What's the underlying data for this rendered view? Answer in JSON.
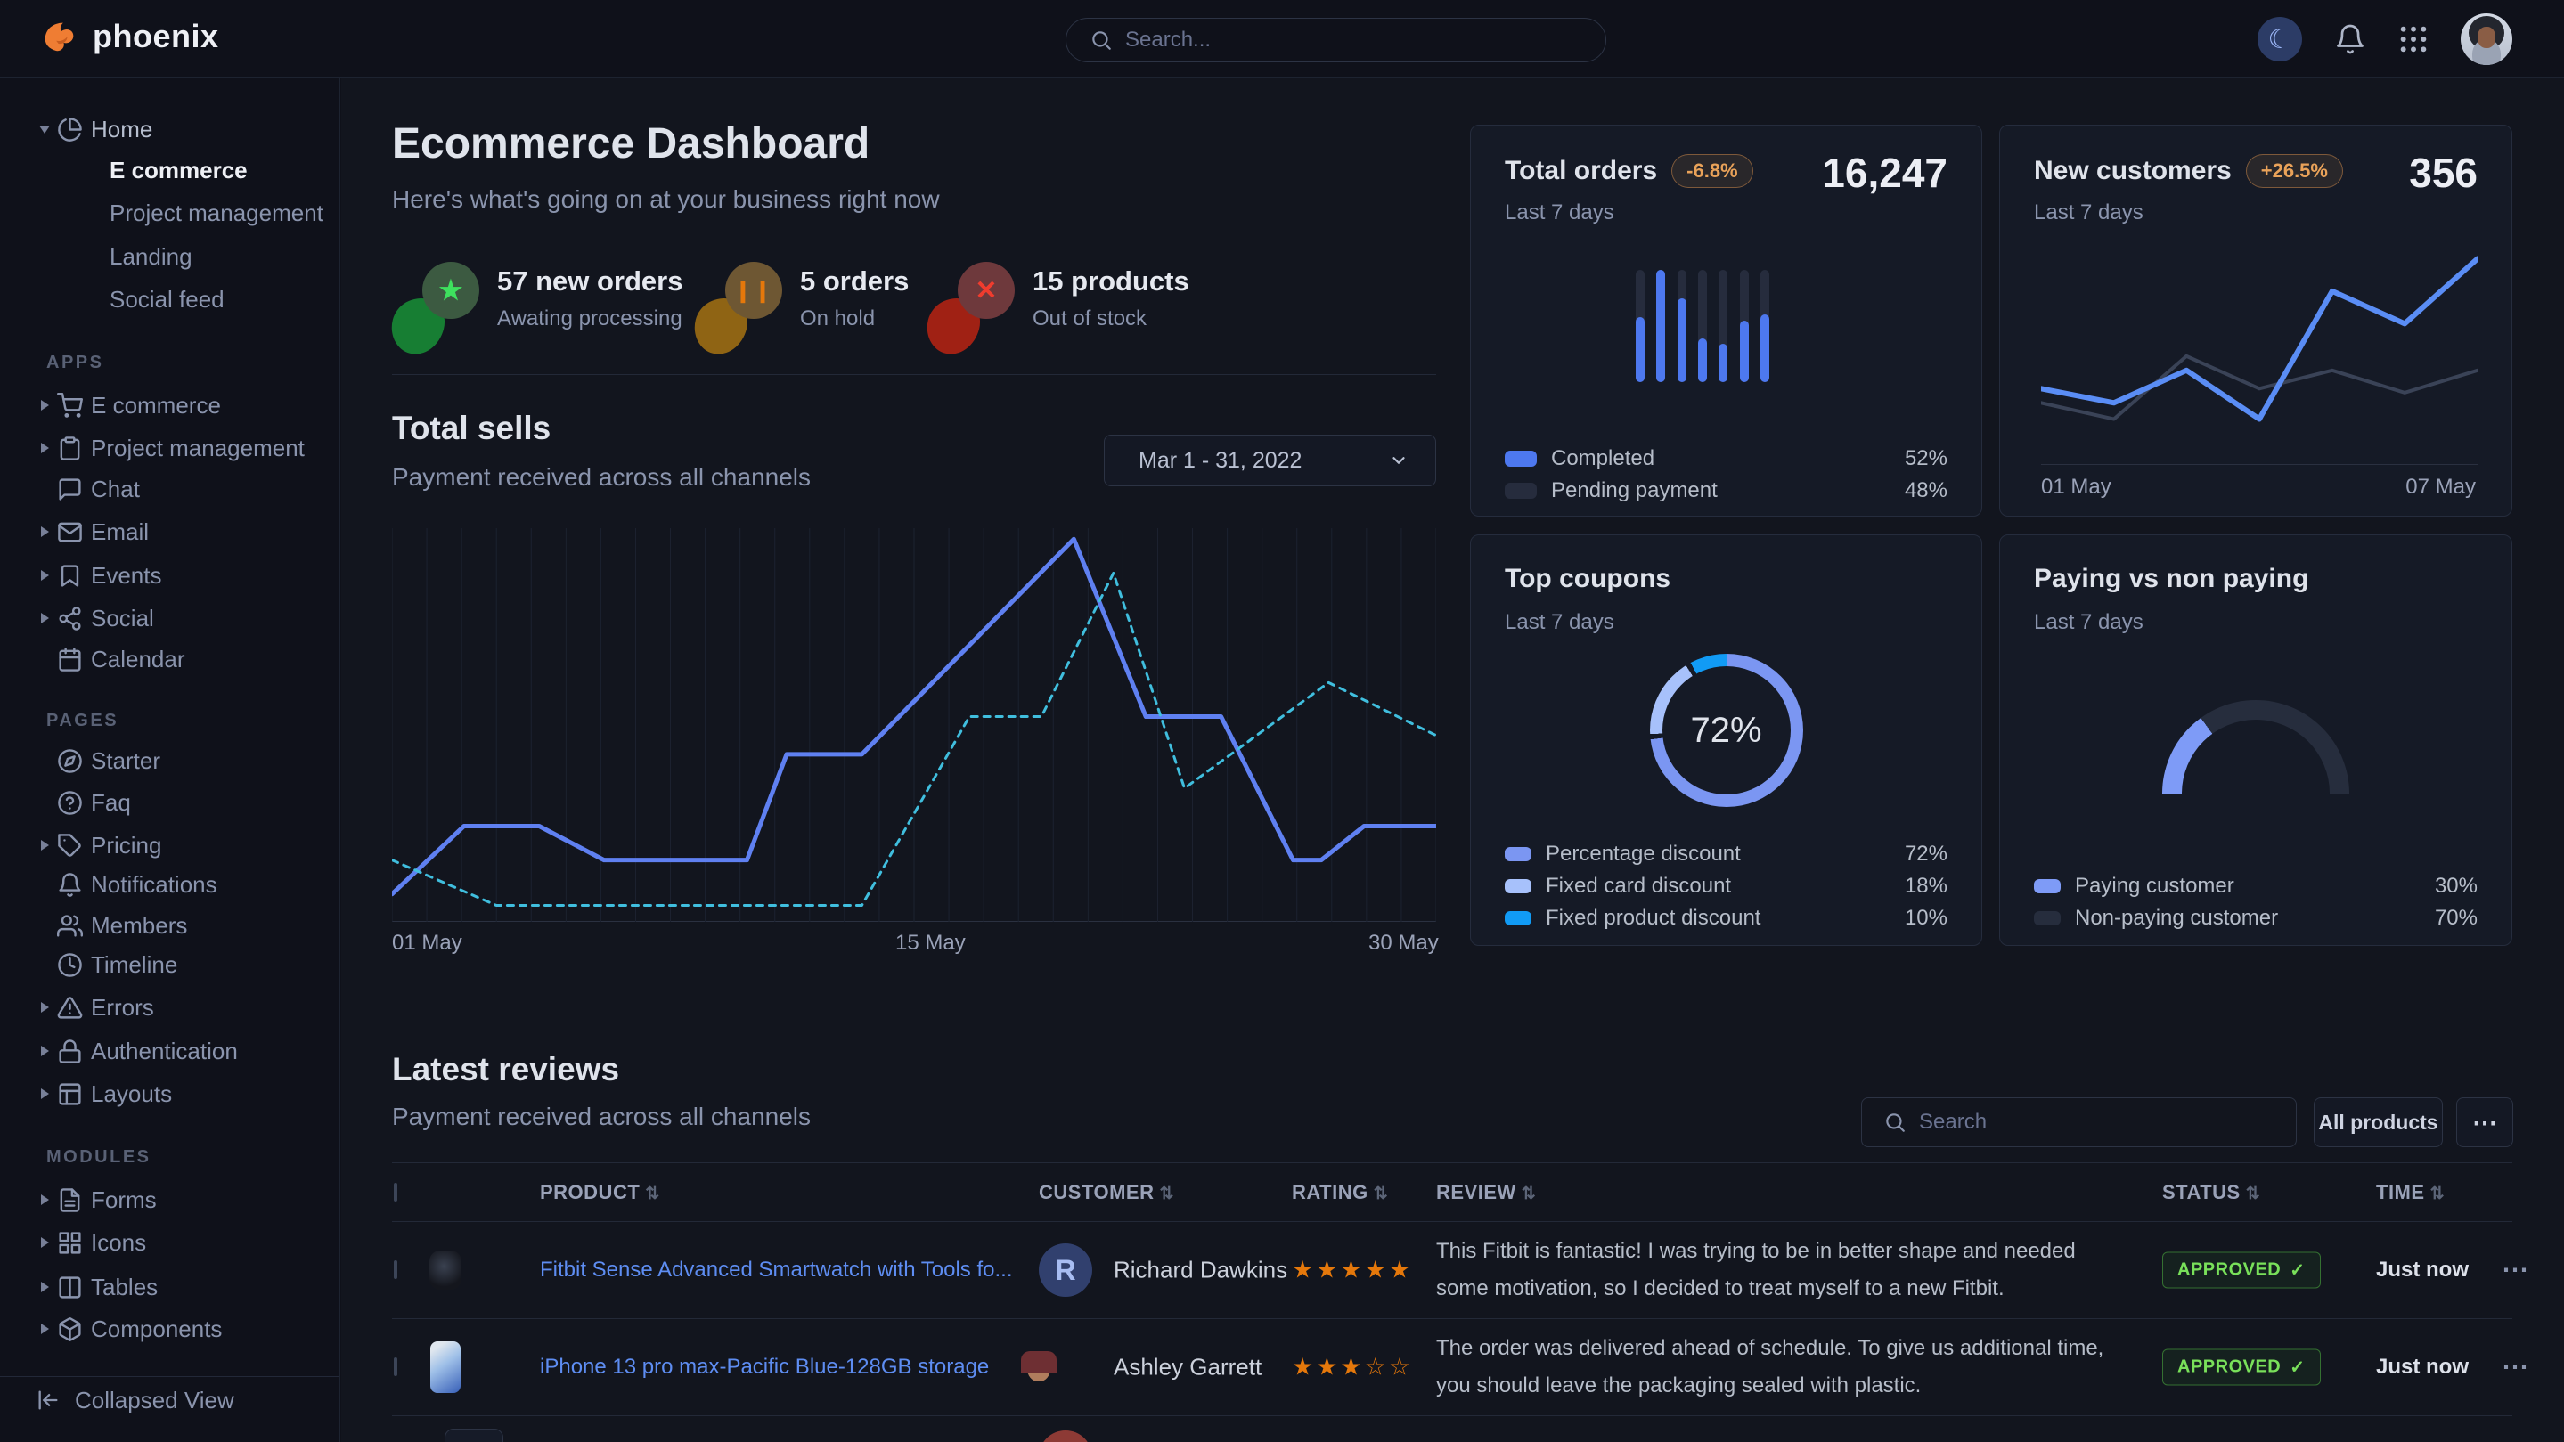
{
  "brand": {
    "name": "phoenix"
  },
  "navbar": {
    "search_placeholder": "Search..."
  },
  "sidebar": {
    "home": {
      "label": "Home",
      "children": [
        {
          "label": "E commerce",
          "active": true
        },
        {
          "label": "Project management",
          "active": false
        },
        {
          "label": "Landing",
          "active": false
        },
        {
          "label": "Social feed",
          "active": false
        }
      ]
    },
    "sections": [
      {
        "label": "APPS",
        "items": [
          {
            "label": "E commerce",
            "icon": "cart",
            "caret": true
          },
          {
            "label": "Project management",
            "icon": "clipboard",
            "caret": true
          },
          {
            "label": "Chat",
            "icon": "chat",
            "caret": false
          },
          {
            "label": "Email",
            "icon": "mail",
            "caret": true
          },
          {
            "label": "Events",
            "icon": "bookmark",
            "caret": true
          },
          {
            "label": "Social",
            "icon": "share",
            "caret": true
          },
          {
            "label": "Calendar",
            "icon": "calendar",
            "caret": false
          }
        ]
      },
      {
        "label": "PAGES",
        "items": [
          {
            "label": "Starter",
            "icon": "compass",
            "caret": false
          },
          {
            "label": "Faq",
            "icon": "help-circle",
            "caret": false
          },
          {
            "label": "Pricing",
            "icon": "tag",
            "caret": true
          },
          {
            "label": "Notifications",
            "icon": "bell",
            "caret": false
          },
          {
            "label": "Members",
            "icon": "users",
            "caret": false
          },
          {
            "label": "Timeline",
            "icon": "clock",
            "caret": false
          },
          {
            "label": "Errors",
            "icon": "alert-triangle",
            "caret": true
          },
          {
            "label": "Authentication",
            "icon": "lock",
            "caret": true
          },
          {
            "label": "Layouts",
            "icon": "layout",
            "caret": true
          }
        ]
      },
      {
        "label": "MODULES",
        "items": [
          {
            "label": "Forms",
            "icon": "file-text",
            "caret": true
          },
          {
            "label": "Icons",
            "icon": "grid",
            "caret": true
          },
          {
            "label": "Tables",
            "icon": "table",
            "caret": true
          },
          {
            "label": "Components",
            "icon": "box",
            "caret": true
          }
        ]
      }
    ],
    "footer": {
      "label": "Collapsed View"
    }
  },
  "header": {
    "title": "Ecommerce Dashboard",
    "subtitle": "Here's what's going on at your business right now"
  },
  "stats": [
    {
      "value_label": "57 new orders",
      "sub": "Awating processing",
      "icon": "star",
      "icon_color": "#3ee05e",
      "circle_color": "#3c5a41",
      "blob_color": "#177e33"
    },
    {
      "value_label": "5 orders",
      "sub": "On hold",
      "icon": "pause",
      "icon_color": "#e5780b",
      "circle_color": "#6e5733",
      "blob_color": "#8f6414"
    },
    {
      "value_label": "15 products",
      "sub": "Out of stock",
      "icon": "x",
      "icon_color": "#f03c2e",
      "circle_color": "#6e393c",
      "blob_color": "#a02114"
    }
  ],
  "total_sells": {
    "title": "Total sells",
    "subtitle": "Payment received across all channels",
    "date_range": "Mar 1 - 31, 2022",
    "x_ticks": [
      "01 May",
      "15 May",
      "30 May"
    ]
  },
  "cards": {
    "total_orders": {
      "title": "Total orders",
      "badge": "-6.8%",
      "value": "16,247",
      "period": "Last 7 days",
      "legend": [
        {
          "label": "Completed",
          "value": "52%"
        },
        {
          "label": "Pending payment",
          "value": "48%"
        }
      ]
    },
    "new_customers": {
      "title": "New customers",
      "badge": "+26.5%",
      "value": "356",
      "period": "Last 7 days",
      "x_ticks": [
        "01 May",
        "07 May"
      ]
    },
    "top_coupons": {
      "title": "Top coupons",
      "period": "Last 7 days",
      "center_value": "72%",
      "legend": [
        {
          "label": "Percentage discount",
          "value": "72%"
        },
        {
          "label": "Fixed card discount",
          "value": "18%"
        },
        {
          "label": "Fixed product discount",
          "value": "10%"
        }
      ]
    },
    "paying": {
      "title": "Paying vs non paying",
      "period": "Last 7 days",
      "legend": [
        {
          "label": "Paying customer",
          "value": "30%"
        },
        {
          "label": "Non-paying customer",
          "value": "70%"
        }
      ]
    }
  },
  "reviews": {
    "title": "Latest reviews",
    "subtitle": "Payment received across all channels",
    "search_placeholder": "Search",
    "filter_button": "All products",
    "more_button": "⋯",
    "columns": [
      "PRODUCT",
      "CUSTOMER",
      "RATING",
      "REVIEW",
      "STATUS",
      "TIME"
    ],
    "rows": [
      {
        "product": "Fitbit Sense Advanced Smartwatch with Tools fo...",
        "customer": "Richard Dawkins",
        "avatar_initial": "R",
        "rating": 5,
        "review": "This Fitbit is fantastic! I was trying to be in better shape and needed some motivation, so I decided to treat myself to a new Fitbit.",
        "status": "APPROVED",
        "time": "Just now"
      },
      {
        "product": "iPhone 13 pro max-Pacific Blue-128GB storage",
        "customer": "Ashley Garrett",
        "avatar_initial": "",
        "rating": 3,
        "review": "The order was delivered ahead of schedule. To give us additional time, you should leave the packaging sealed with plastic.",
        "status": "APPROVED",
        "time": "Just now"
      }
    ]
  },
  "chart_data": [
    {
      "type": "line",
      "title": "Total sells",
      "x_ticks": [
        "01 May",
        "15 May",
        "30 May"
      ],
      "xlim": [
        0,
        100
      ],
      "ylim": [
        0,
        100
      ],
      "grid": "vertical-only",
      "legend": "none",
      "series": [
        {
          "style": "solid",
          "color": "#5f80f1",
          "points": [
            [
              0,
              5
            ],
            [
              6.9,
              23
            ],
            [
              14.1,
              23
            ],
            [
              20.3,
              14
            ],
            [
              34,
              14
            ],
            [
              37.8,
              42
            ],
            [
              45,
              42
            ],
            [
              65.3,
              99
            ],
            [
              72.2,
              52
            ],
            [
              79.4,
              52
            ],
            [
              86.3,
              14
            ],
            [
              89,
              14
            ],
            [
              93.1,
              23
            ],
            [
              100,
              23
            ]
          ]
        },
        {
          "style": "dashed",
          "color": "#40bede",
          "points": [
            [
              0,
              14
            ],
            [
              10,
              2
            ],
            [
              45,
              2
            ],
            [
              55.3,
              52
            ],
            [
              62.2,
              52
            ],
            [
              69.1,
              90
            ],
            [
              75.9,
              33
            ],
            [
              89.7,
              61
            ],
            [
              100,
              47
            ]
          ]
        }
      ]
    },
    {
      "type": "bar",
      "title": "Total orders last 7 days",
      "values": [
        58,
        100,
        75,
        39,
        34,
        55,
        60
      ],
      "ylim": [
        0,
        100
      ],
      "bar_color": "#4d78ef",
      "track_color": "#262c3d",
      "completed_pct": 52,
      "pending_pct": 48
    },
    {
      "type": "line",
      "title": "New customers last 7 days",
      "x_ticks": [
        "01 May",
        "07 May"
      ],
      "ylim": [
        0,
        100
      ],
      "series": [
        {
          "style": "solid",
          "color": "#5a8df5",
          "points": [
            [
              0,
              31
            ],
            [
              16.7,
              24
            ],
            [
              33.3,
              40
            ],
            [
              50,
              16
            ],
            [
              66.7,
              79
            ],
            [
              83.3,
              63
            ],
            [
              100,
              95
            ]
          ]
        },
        {
          "style": "solid-muted",
          "color": "#3a4357",
          "points": [
            [
              0,
              24
            ],
            [
              16.7,
              16
            ],
            [
              33.3,
              47
            ],
            [
              50,
              31
            ],
            [
              66.7,
              40
            ],
            [
              83.3,
              29
            ],
            [
              100,
              40
            ]
          ]
        }
      ]
    },
    {
      "type": "donut",
      "title": "Top coupons",
      "center_label": "72%",
      "start_angle_deg": 8,
      "slices": [
        {
          "label": "Percentage discount",
          "value": 72,
          "color": "#7b96f2"
        },
        {
          "label": "Fixed card discount",
          "value": 18,
          "color": "#a7c1fb"
        },
        {
          "label": "Fixed product discount",
          "value": 10,
          "color": "#119bf5"
        }
      ]
    },
    {
      "type": "gauge",
      "title": "Paying vs non paying",
      "span_deg": 180,
      "slices": [
        {
          "label": "Paying customer",
          "value": 30,
          "color": "#7e9bf7"
        },
        {
          "label": "Non-paying customer",
          "value": 70,
          "color": "#262d3d"
        }
      ]
    }
  ]
}
